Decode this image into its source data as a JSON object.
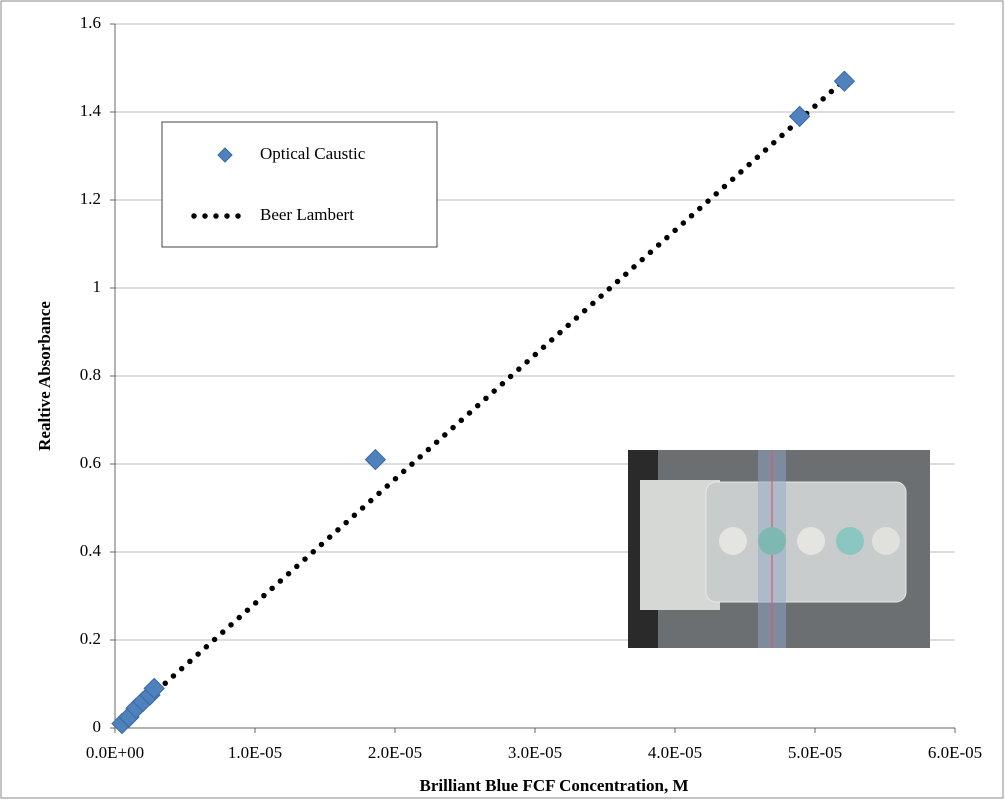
{
  "chart_data": {
    "type": "scatter",
    "x_label": "Brilliant Blue FCF Concentration, M",
    "y_label": "Realtive Absorbance",
    "xlim": [
      0,
      6e-05
    ],
    "ylim": [
      0,
      1.6
    ],
    "xticks": [
      {
        "value": 0,
        "label": "0.0E+00"
      },
      {
        "value": 1e-05,
        "label": "1.0E-05"
      },
      {
        "value": 2e-05,
        "label": "2.0E-05"
      },
      {
        "value": 3e-05,
        "label": "3.0E-05"
      },
      {
        "value": 4e-05,
        "label": "4.0E-05"
      },
      {
        "value": 5e-05,
        "label": "5.0E-05"
      },
      {
        "value": 6e-05,
        "label": "6.0E-05"
      }
    ],
    "yticks": [
      0,
      0.2,
      0.4,
      0.6,
      0.8,
      1,
      1.2,
      1.4,
      1.6
    ],
    "grid": true,
    "legend": "upper left",
    "series": [
      {
        "name": "Optical Caustic",
        "type": "scatter",
        "color": "#4f81bd",
        "x": [
          5e-07,
          1e-06,
          1.5e-06,
          2e-06,
          2.5e-06,
          2.8e-06,
          1.86e-05,
          4.89e-05,
          5.21e-05
        ],
        "values": [
          0.01,
          0.025,
          0.045,
          0.06,
          0.075,
          0.09,
          0.61,
          1.39,
          1.47
        ]
      },
      {
        "name": "Beer Lambert",
        "type": "line",
        "color": "#000000",
        "x": [
          3e-06,
          5.2e-05
        ],
        "values": [
          0.085,
          1.47
        ]
      }
    ]
  }
}
